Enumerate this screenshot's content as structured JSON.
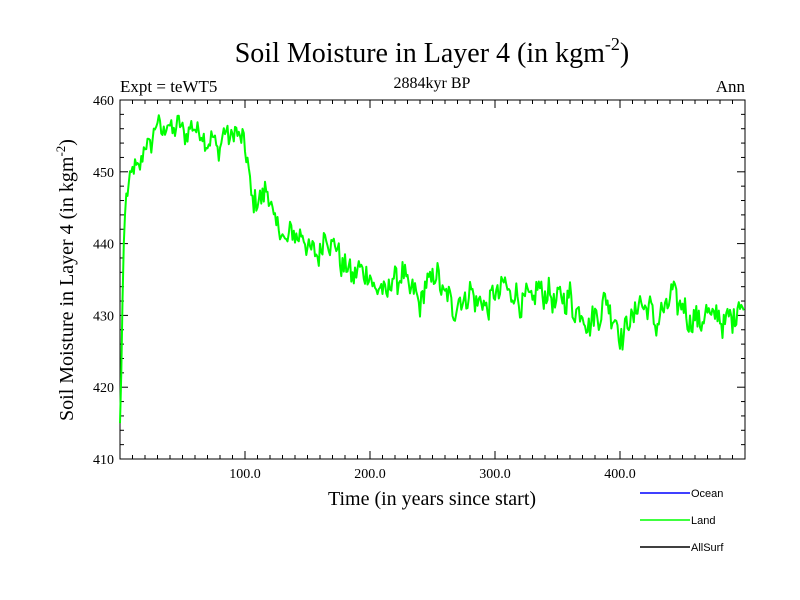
{
  "chart_data": {
    "type": "line",
    "title": "Soil Moisture in Layer 4 (in kgm",
    "title_sup": "-2",
    "title_end": ")",
    "subtitle_left": "Expt = teWT5",
    "subtitle_center": "2884kyr BP",
    "subtitle_right": "Ann",
    "xlabel": "Time (in years since start)",
    "ylabel": "Soil Moisture in Layer 4 (in kgm",
    "ylabel_sup": "-2",
    "ylabel_end": ")",
    "xlim": [
      0,
      500
    ],
    "ylim": [
      410,
      460
    ],
    "xticks": [
      100,
      200,
      300,
      400
    ],
    "xtick_labels": [
      "100.0",
      "200.0",
      "300.0",
      "400.0"
    ],
    "yticks": [
      410,
      420,
      430,
      440,
      450,
      460
    ],
    "ytick_labels": [
      "410",
      "420",
      "430",
      "440",
      "450",
      "460"
    ],
    "grid": false,
    "legend_position": "bottom-right",
    "legend": [
      {
        "name": "Ocean",
        "color": "#0000ff"
      },
      {
        "name": "Land",
        "color": "#00ff00"
      },
      {
        "name": "AllSurf",
        "color": "#000000"
      }
    ],
    "series": [
      {
        "name": "Land",
        "color": "#00ff00",
        "x": [
          0,
          1,
          2,
          3,
          4,
          5,
          7,
          10,
          13,
          16,
          20,
          25,
          30,
          35,
          40,
          45,
          50,
          55,
          60,
          65,
          70,
          75,
          80,
          85,
          90,
          95,
          98,
          100,
          102,
          105,
          108,
          110,
          113,
          116,
          120,
          125,
          130,
          135,
          140,
          145,
          150,
          155,
          160,
          165,
          170,
          175,
          180,
          185,
          190,
          195,
          200,
          210,
          220,
          230,
          240,
          250,
          260,
          270,
          280,
          290,
          300,
          310,
          320,
          330,
          340,
          350,
          360,
          362,
          364,
          366,
          370,
          380,
          390,
          400,
          410,
          420,
          430,
          440,
          450,
          460,
          470,
          480,
          490,
          495,
          499
        ],
        "values": [
          415,
          422,
          432,
          440,
          444,
          446,
          448,
          449,
          450,
          452,
          454,
          455,
          456,
          455,
          456,
          457,
          457,
          455,
          456,
          454,
          455,
          455,
          454,
          455,
          454,
          455,
          456,
          453,
          452,
          448,
          446,
          445,
          446,
          447,
          445,
          443,
          442,
          441,
          441,
          440,
          440,
          439,
          440,
          441,
          439,
          438,
          437,
          437,
          436,
          436,
          434,
          434,
          435,
          434,
          433,
          435,
          433,
          432,
          432,
          432,
          433,
          433,
          433,
          432,
          433,
          433,
          432,
          429,
          430,
          431,
          430,
          430,
          431,
          428,
          430,
          431,
          430,
          432,
          431,
          430,
          429,
          430,
          430,
          431,
          430
        ]
      }
    ]
  }
}
